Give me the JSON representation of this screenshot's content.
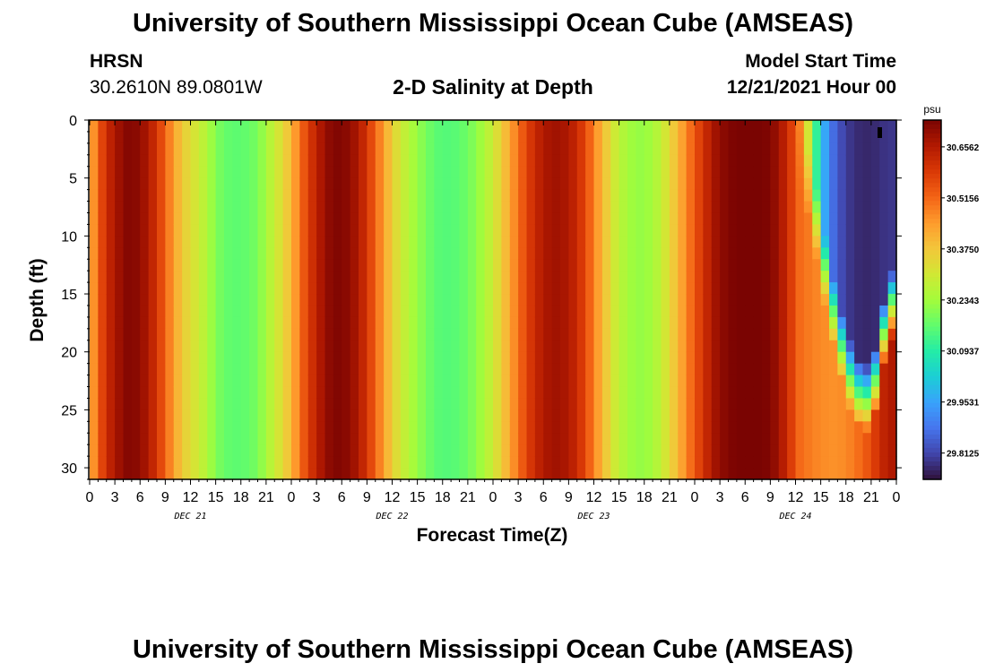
{
  "header": {
    "title": "University of Southern Mississippi Ocean Cube (AMSEAS)",
    "station": "HRSN",
    "coords": "30.2610N  89.0801W",
    "plot_title": "2-D Salinity at Depth",
    "model_label": "Model Start Time",
    "model_time": "12/21/2021 Hour 00"
  },
  "footer": {
    "title": "University of Southern Mississippi Ocean Cube (AMSEAS)"
  },
  "chart_data": {
    "type": "heatmap",
    "title": "2-D Salinity at Depth",
    "xlabel": "Forecast Time(Z)",
    "ylabel": "Depth (ft)",
    "x_hours_range": [
      0,
      96
    ],
    "ylim": [
      0,
      31
    ],
    "y_ticks": [
      0,
      5,
      10,
      15,
      20,
      25,
      30
    ],
    "x_tick_labels": [
      "0",
      "3",
      "6",
      "9",
      "12",
      "15",
      "18",
      "21",
      "0",
      "3",
      "6",
      "9",
      "12",
      "15",
      "18",
      "21",
      "0",
      "3",
      "6",
      "9",
      "12",
      "15",
      "18",
      "21",
      "0",
      "3",
      "6",
      "9",
      "12",
      "15",
      "18",
      "21",
      "0"
    ],
    "day_labels": [
      {
        "label": "DEC 21",
        "hour": 12
      },
      {
        "label": "DEC 22",
        "hour": 36
      },
      {
        "label": "DEC 23",
        "hour": 60
      },
      {
        "label": "DEC 24",
        "hour": 84
      }
    ],
    "colorbar": {
      "unit": "psu",
      "min": 29.74,
      "max": 30.73,
      "tick_labels": [
        "30.6562",
        "30.5156",
        "30.3750",
        "30.2343",
        "30.0937",
        "29.9531",
        "29.8125"
      ],
      "tick_values": [
        30.6562,
        30.5156,
        30.375,
        30.2343,
        30.0937,
        29.9531,
        29.8125
      ],
      "colormap": [
        "#30123b",
        "#4145ab",
        "#4675ed",
        "#39a2fc",
        "#1bcfd4",
        "#24eca6",
        "#61fc6c",
        "#a4fc3b",
        "#d1e834",
        "#f3c63a",
        "#fe9b2d",
        "#f36315",
        "#d93806",
        "#b11901",
        "#7a0402"
      ]
    },
    "surface_profile_psu": [
      [
        0,
        30.4
      ],
      [
        1,
        30.52
      ],
      [
        2,
        30.62
      ],
      [
        3,
        30.66
      ],
      [
        4,
        30.71
      ],
      [
        5,
        30.72
      ],
      [
        6,
        30.7
      ],
      [
        7,
        30.66
      ],
      [
        8,
        30.6
      ],
      [
        9,
        30.52
      ],
      [
        10,
        30.44
      ],
      [
        11,
        30.37
      ],
      [
        12,
        30.33
      ],
      [
        13,
        30.3
      ],
      [
        14,
        30.25
      ],
      [
        15,
        30.2
      ],
      [
        16,
        30.17
      ],
      [
        17,
        30.16
      ],
      [
        18,
        30.16
      ],
      [
        19,
        30.17
      ],
      [
        20,
        30.19
      ],
      [
        21,
        30.24
      ],
      [
        22,
        30.29
      ],
      [
        23,
        30.34
      ],
      [
        24,
        30.4
      ],
      [
        25,
        30.5
      ],
      [
        26,
        30.58
      ],
      [
        27,
        30.64
      ],
      [
        28,
        30.69
      ],
      [
        29,
        30.72
      ],
      [
        30,
        30.72
      ],
      [
        31,
        30.7
      ],
      [
        32,
        30.66
      ],
      [
        33,
        30.6
      ],
      [
        34,
        30.52
      ],
      [
        35,
        30.44
      ],
      [
        36,
        30.36
      ],
      [
        37,
        30.3
      ],
      [
        38,
        30.26
      ],
      [
        39,
        30.22
      ],
      [
        40,
        30.19
      ],
      [
        41,
        30.16
      ],
      [
        42,
        30.15
      ],
      [
        43,
        30.15
      ],
      [
        44,
        30.16
      ],
      [
        45,
        30.18
      ],
      [
        46,
        30.21
      ],
      [
        47,
        30.25
      ],
      [
        48,
        30.3
      ],
      [
        49,
        30.36
      ],
      [
        50,
        30.43
      ],
      [
        51,
        30.5
      ],
      [
        52,
        30.57
      ],
      [
        53,
        30.62
      ],
      [
        54,
        30.66
      ],
      [
        55,
        30.68
      ],
      [
        56,
        30.68
      ],
      [
        57,
        30.66
      ],
      [
        58,
        30.62
      ],
      [
        59,
        30.56
      ],
      [
        60,
        30.48
      ],
      [
        61,
        30.4
      ],
      [
        62,
        30.33
      ],
      [
        63,
        30.27
      ],
      [
        64,
        30.24
      ],
      [
        65,
        30.22
      ],
      [
        66,
        30.22
      ],
      [
        67,
        30.24
      ],
      [
        68,
        30.28
      ],
      [
        69,
        30.34
      ],
      [
        70,
        30.4
      ],
      [
        71,
        30.47
      ],
      [
        72,
        30.54
      ],
      [
        73,
        30.6
      ],
      [
        74,
        30.66
      ],
      [
        75,
        30.7
      ],
      [
        76,
        30.72
      ],
      [
        77,
        30.73
      ],
      [
        78,
        30.73
      ],
      [
        79,
        30.73
      ],
      [
        80,
        30.73
      ],
      [
        81,
        30.72
      ],
      [
        82,
        30.68
      ],
      [
        83,
        30.62
      ],
      [
        84,
        30.54
      ],
      [
        85,
        30.42
      ],
      [
        86,
        30.2
      ],
      [
        87,
        30.02
      ],
      [
        88,
        29.9
      ],
      [
        89,
        29.84
      ],
      [
        90,
        29.8
      ],
      [
        91,
        29.78
      ],
      [
        92,
        29.77
      ],
      [
        93,
        29.77
      ],
      [
        94,
        29.78
      ],
      [
        95,
        29.79
      ]
    ],
    "bottom_profile_psu": [
      [
        84,
        30.52
      ],
      [
        85,
        30.5
      ],
      [
        86,
        30.48
      ],
      [
        87,
        30.47
      ],
      [
        88,
        30.46
      ],
      [
        89,
        30.46
      ],
      [
        90,
        30.47
      ],
      [
        91,
        30.49
      ],
      [
        92,
        30.52
      ],
      [
        93,
        30.56
      ],
      [
        94,
        30.61
      ],
      [
        95,
        30.66
      ]
    ],
    "freshwater_wedge_depth_ft": [
      [
        84,
        0
      ],
      [
        85,
        1
      ],
      [
        86,
        4
      ],
      [
        87,
        8
      ],
      [
        88,
        12
      ],
      [
        89,
        15
      ],
      [
        90,
        18
      ],
      [
        91,
        20
      ],
      [
        92,
        21
      ],
      [
        93,
        21
      ],
      [
        94,
        18
      ],
      [
        95,
        13
      ]
    ]
  }
}
